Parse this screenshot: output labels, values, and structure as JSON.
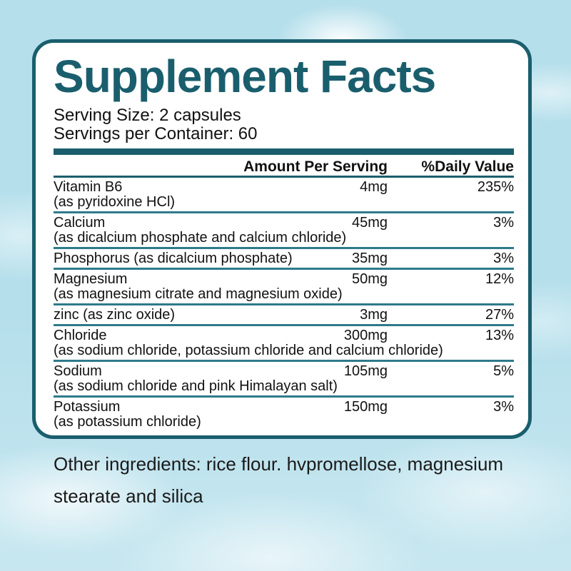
{
  "title": "Supplement Facts",
  "serving": {
    "size_label": "Serving Size: 2 capsules",
    "per_container_label": "Servings per Container: 60"
  },
  "table": {
    "headers": {
      "amount": "Amount Per Serving",
      "daily_value": "%Daily Value"
    },
    "rows": [
      {
        "name": "Vitamin B6",
        "detail": "(as pyridoxine HCl)",
        "amount": "4mg",
        "dv": "235%"
      },
      {
        "name": "Calcium",
        "detail": "(as dicalcium phosphate and calcium chloride)",
        "amount": "45mg",
        "dv": "3%"
      },
      {
        "name": "Phosphorus (as dicalcium phosphate)",
        "detail": "",
        "amount": "35mg",
        "dv": "3%"
      },
      {
        "name": "Magnesium",
        "detail": "(as magnesium citrate and magnesium oxide)",
        "amount": "50mg",
        "dv": "12%"
      },
      {
        "name": "zinc (as zinc oxide)",
        "detail": "",
        "amount": "3mg",
        "dv": "27%"
      },
      {
        "name": "Chloride",
        "detail": "(as sodium chloride, potassium chloride and calcium chloride)",
        "amount": "300mg",
        "dv": "13%"
      },
      {
        "name": "Sodium",
        "detail": "(as sodium chloride and pink Himalayan salt)",
        "amount": "105mg",
        "dv": "5%"
      },
      {
        "name": "Potassium",
        "detail": "(as potassium chloride)",
        "amount": "150mg",
        "dv": "3%"
      }
    ]
  },
  "other_ingredients": "Other ingredients: rice flour. hvpromellose, magnesium stearate and silica",
  "colors": {
    "teal": "#1a5e6d",
    "divider": "#2e7a8a",
    "background": "#b5dfeb",
    "panel": "#ffffff",
    "text": "#111111"
  }
}
